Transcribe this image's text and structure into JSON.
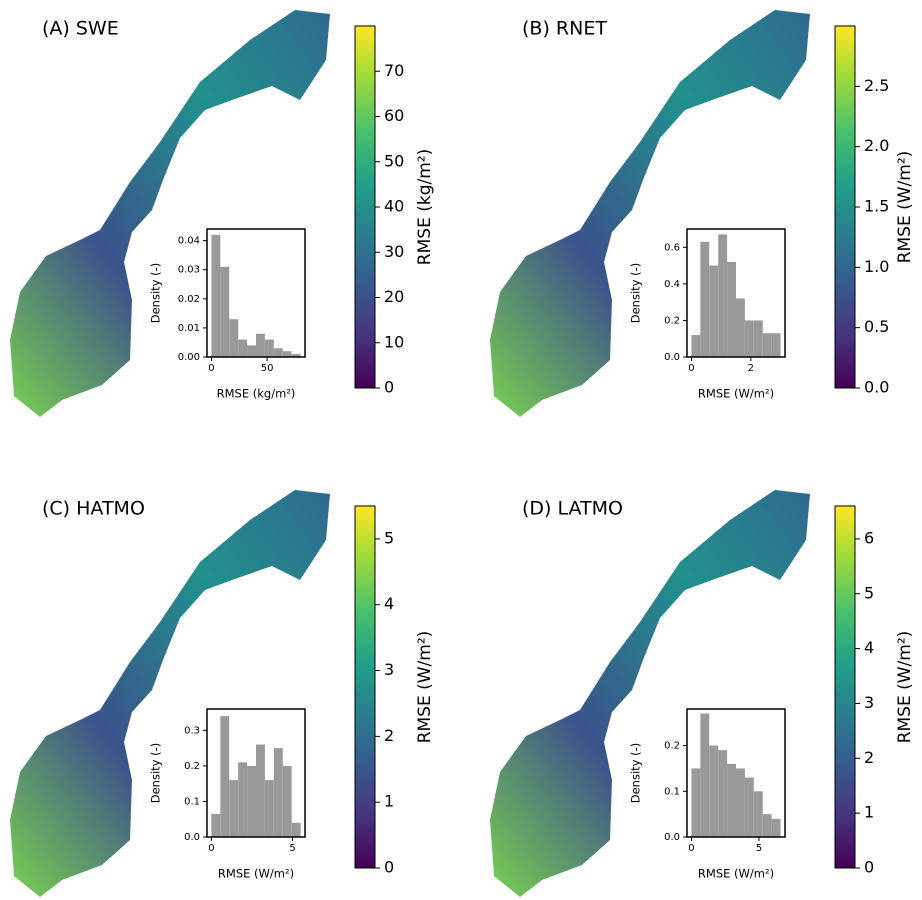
{
  "chart_data": [
    {
      "type": "histogram",
      "title": "(A) SWE",
      "xlabel": "RMSE (kg/m²)",
      "ylabel": "Density (-)",
      "color": "#999999",
      "bins": [
        0,
        8,
        16,
        24,
        32,
        40,
        48,
        56,
        64,
        72,
        80
      ],
      "values": [
        0.042,
        0.031,
        0.013,
        0.006,
        0.004,
        0.008,
        0.006,
        0.003,
        0.002,
        0.001
      ],
      "xlim": [
        -4,
        84
      ],
      "xticks": [
        0,
        50
      ],
      "ylim": [
        0,
        0.044
      ],
      "yticks": [
        {
          "value": 0,
          "label": "0.00"
        },
        {
          "value": 0.01,
          "label": "0.01"
        },
        {
          "value": 0.02,
          "label": "0.02"
        },
        {
          "value": 0.03,
          "label": "0.03"
        },
        {
          "value": 0.04,
          "label": "0.04"
        }
      ],
      "colorbar": {
        "label": "RMSE (kg/m²)",
        "colormap": "viridis",
        "lim": [
          0,
          80
        ],
        "ticks": [
          0,
          10,
          20,
          30,
          40,
          50,
          60,
          70
        ]
      }
    },
    {
      "type": "histogram",
      "title": "(B) RNET",
      "xlabel": "RMSE (W/m²)",
      "ylabel": "Density (-)",
      "color": "#999999",
      "bins": [
        0,
        0.3,
        0.6,
        0.9,
        1.2,
        1.5,
        1.8,
        2.1,
        2.4,
        2.7,
        3.0
      ],
      "values": [
        0.12,
        0.63,
        0.5,
        0.67,
        0.52,
        0.32,
        0.2,
        0.2,
        0.13,
        0.13
      ],
      "xlim": [
        -0.15,
        3.15
      ],
      "xticks": [
        0,
        2
      ],
      "ylim": [
        0,
        0.7
      ],
      "yticks": [
        {
          "value": 0,
          "label": "0.0"
        },
        0.2,
        0.4,
        0.6
      ],
      "colorbar": {
        "label": "RMSE (W/m²)",
        "colormap": "viridis",
        "lim": [
          0,
          3
        ],
        "ticks": [
          {
            "value": 0,
            "label": "0.0"
          },
          0.5,
          {
            "value": 1,
            "label": "1.0"
          },
          1.5,
          {
            "value": 2,
            "label": "2.0"
          },
          2.5
        ]
      }
    },
    {
      "type": "histogram",
      "title": "(C) HATMO",
      "xlabel": "RMSE (W/m²)",
      "ylabel": "Density (-)",
      "color": "#999999",
      "bins": [
        0,
        0.55,
        1.1,
        1.65,
        2.2,
        2.75,
        3.3,
        3.85,
        4.4,
        4.95,
        5.5
      ],
      "values": [
        0.065,
        0.34,
        0.16,
        0.21,
        0.2,
        0.26,
        0.16,
        0.25,
        0.2,
        0.04
      ],
      "xlim": [
        -0.27,
        5.77
      ],
      "xticks": [
        0,
        5
      ],
      "ylim": [
        0,
        0.36
      ],
      "yticks": [
        {
          "value": 0,
          "label": "0.0"
        },
        0.1,
        0.2,
        0.3
      ],
      "colorbar": {
        "label": "RMSE (W/m²)",
        "colormap": "viridis",
        "lim": [
          0,
          5.5
        ],
        "ticks": [
          0,
          1,
          2,
          3,
          4,
          5
        ]
      }
    },
    {
      "type": "histogram",
      "title": "(D) LATMO",
      "xlabel": "RMSE (W/m²)",
      "ylabel": "Density (-)",
      "color": "#999999",
      "bins": [
        0,
        0.66,
        1.32,
        1.98,
        2.64,
        3.3,
        3.96,
        4.62,
        5.28,
        5.94,
        6.6
      ],
      "values": [
        0.15,
        0.27,
        0.2,
        0.19,
        0.16,
        0.15,
        0.13,
        0.1,
        0.05,
        0.04
      ],
      "xlim": [
        -0.33,
        6.93
      ],
      "xticks": [
        0,
        5
      ],
      "ylim": [
        0,
        0.28
      ],
      "yticks": [
        {
          "value": 0,
          "label": "0.0"
        },
        0.1,
        0.2
      ],
      "colorbar": {
        "label": "RMSE (W/m²)",
        "colormap": "viridis",
        "lim": [
          0,
          6.6
        ],
        "ticks": [
          0,
          1,
          2,
          3,
          4,
          5,
          6
        ]
      }
    }
  ]
}
